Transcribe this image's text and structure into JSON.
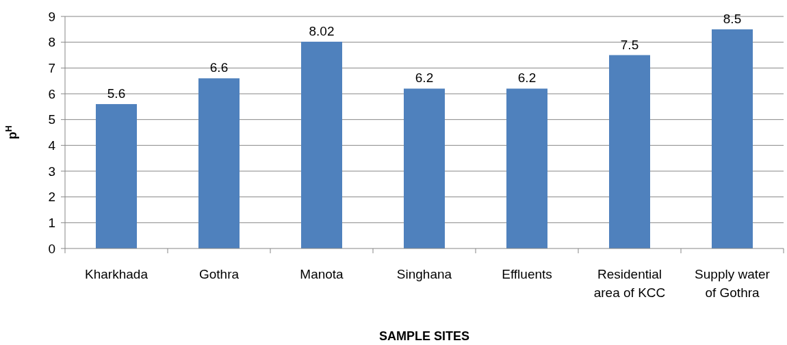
{
  "chart_data": {
    "type": "bar",
    "xlabel": "SAMPLE SITES",
    "ylabel": "p$^{H}$",
    "categories": [
      "Kharkhada",
      "Gothra",
      "Manota",
      "Singhana",
      "Effluents",
      "Residential area of KCC",
      "Supply water of Gothra"
    ],
    "values": [
      5.6,
      6.6,
      8.02,
      6.2,
      6.2,
      7.5,
      8.5
    ],
    "color": "#4f81bd",
    "ylim": [
      0,
      9
    ],
    "yticks": [
      0,
      1,
      2,
      3,
      4,
      5,
      6,
      7,
      8,
      9
    ],
    "grid": "y",
    "data_labels": true
  }
}
